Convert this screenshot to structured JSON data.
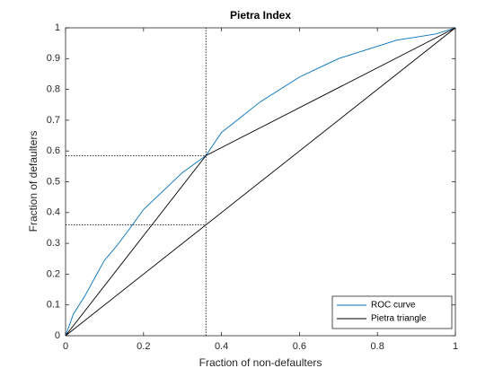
{
  "chart_data": {
    "type": "line",
    "title": "Pietra Index",
    "xlabel": "Fraction of non-defaulters",
    "ylabel": "Fraction of defaulters",
    "xlim": [
      0,
      1
    ],
    "ylim": [
      0,
      1
    ],
    "xticks": [
      0,
      0.2,
      0.4,
      0.6,
      0.8,
      1
    ],
    "yticks": [
      0,
      0.1,
      0.2,
      0.3,
      0.4,
      0.5,
      0.6,
      0.7,
      0.8,
      0.9,
      1
    ],
    "grid": false,
    "legend": "bottom-right",
    "series": [
      {
        "name": "ROC curve",
        "color": "#0072bd",
        "x": [
          0,
          0.02,
          0.05,
          0.08,
          0.1,
          0.13,
          0.16,
          0.2,
          0.25,
          0.3,
          0.36,
          0.4,
          0.45,
          0.5,
          0.55,
          0.6,
          0.65,
          0.7,
          0.75,
          0.8,
          0.85,
          0.9,
          0.95,
          1
        ],
        "values": [
          0,
          0.07,
          0.13,
          0.2,
          0.245,
          0.29,
          0.34,
          0.41,
          0.47,
          0.53,
          0.585,
          0.66,
          0.71,
          0.76,
          0.8,
          0.84,
          0.87,
          0.9,
          0.92,
          0.94,
          0.96,
          0.97,
          0.98,
          1
        ]
      },
      {
        "name": "Pietra triangle",
        "color": "#000000",
        "x": [
          0,
          0.36,
          1,
          0
        ],
        "values": [
          0,
          0.585,
          1,
          0
        ]
      }
    ],
    "reference_lines": [
      {
        "x": [
          0.36,
          0.36
        ],
        "y": [
          0,
          1
        ]
      },
      {
        "x": [
          0,
          0.36
        ],
        "y": [
          0.585,
          0.585
        ]
      },
      {
        "x": [
          0,
          0.36
        ],
        "y": [
          0.36,
          0.36
        ]
      }
    ]
  }
}
